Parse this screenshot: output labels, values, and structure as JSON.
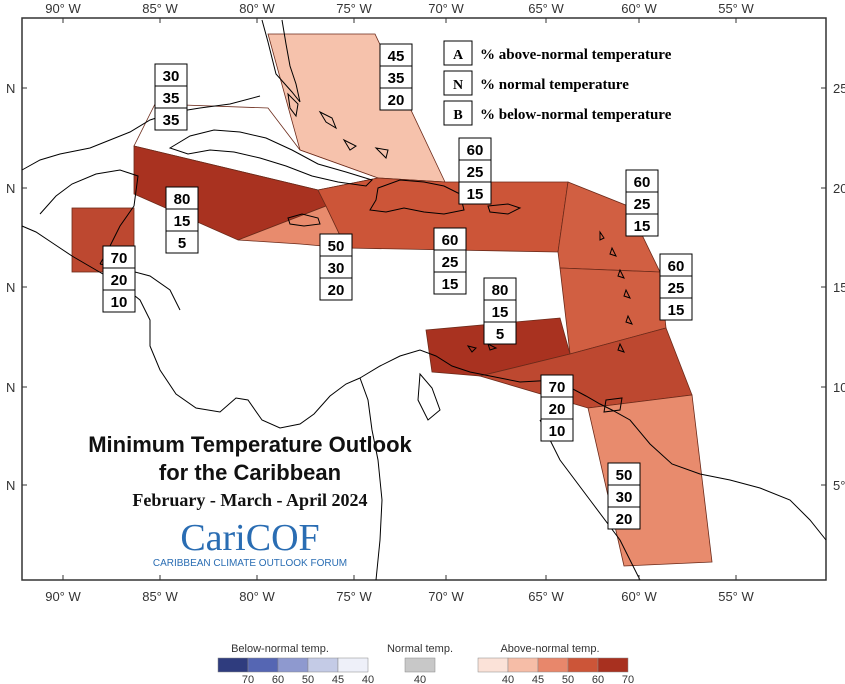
{
  "axes": {
    "top_lon_labels": [
      "90° W",
      "85° W",
      "80° W",
      "75° W",
      "70° W",
      "65° W",
      "60° W",
      "55° W"
    ],
    "bottom_lon_labels": [
      "90° W",
      "85° W",
      "80° W",
      "75° W",
      "70° W",
      "65° W",
      "60° W",
      "55° W"
    ],
    "left_lat_labels": [
      "N",
      "N",
      "N",
      "N",
      "N"
    ],
    "right_lat_labels": [
      "25",
      "20",
      "15",
      "10",
      "5°"
    ]
  },
  "legend": {
    "items": [
      {
        "key": "A",
        "text": "% above-normal temperature"
      },
      {
        "key": "N",
        "text": "% normal temperature"
      },
      {
        "key": "B",
        "text": "% below-normal temperature"
      }
    ]
  },
  "regions": [
    {
      "name": "bahamas",
      "probs": [
        "45",
        "35",
        "20"
      ]
    },
    {
      "name": "belize",
      "probs": [
        "70",
        "20",
        "10"
      ]
    },
    {
      "name": "cuba-north",
      "probs": [
        "30",
        "35",
        "35"
      ]
    },
    {
      "name": "cayman-jamaica",
      "probs": [
        "80",
        "15",
        "5"
      ]
    },
    {
      "name": "jamaica-south",
      "probs": [
        "50",
        "30",
        "20"
      ]
    },
    {
      "name": "hispaniola",
      "probs": [
        "60",
        "25",
        "15"
      ]
    },
    {
      "name": "puerto-rico",
      "probs": [
        "60",
        "25",
        "15"
      ]
    },
    {
      "name": "leeward-islands",
      "probs": [
        "60",
        "25",
        "15"
      ]
    },
    {
      "name": "windward-islands",
      "probs": [
        "60",
        "25",
        "15"
      ]
    },
    {
      "name": "abc-islands",
      "probs": [
        "80",
        "15",
        "5"
      ]
    },
    {
      "name": "trinidad",
      "probs": [
        "70",
        "20",
        "10"
      ]
    },
    {
      "name": "guianas",
      "probs": [
        "50",
        "30",
        "20"
      ]
    }
  ],
  "title": {
    "line1": "Minimum Temperature Outlook",
    "line2": "for the Caribbean",
    "period": "February - March - April 2024"
  },
  "logo": {
    "name": "CariCOF",
    "subtitle": "CARIBBEAN CLIMATE OUTLOOK FORUM"
  },
  "colorbar": {
    "below": {
      "title": "Below-normal temp.",
      "ticks": [
        "70",
        "60",
        "50",
        "45",
        "40"
      ],
      "colors": [
        "#2f3c7e",
        "#5566b3",
        "#8e99cf",
        "#c4cbe6",
        "#eef0f9"
      ]
    },
    "normal": {
      "title": "Normal temp.",
      "ticks": [
        "40"
      ],
      "colors": [
        "#c8c8c8"
      ]
    },
    "above": {
      "title": "Above-normal temp.",
      "ticks": [
        "40",
        "45",
        "50",
        "60",
        "70"
      ],
      "colors": [
        "#fbe2d8",
        "#f6bda7",
        "#e8876b",
        "#cc5538",
        "#a8301f"
      ]
    }
  },
  "colors": {
    "a45": "#f6c2ac",
    "a50": "#e88b6d",
    "a60": "#d15f42",
    "a70": "#bd4830",
    "a80": "#a93220",
    "n35": "#ffffff"
  }
}
